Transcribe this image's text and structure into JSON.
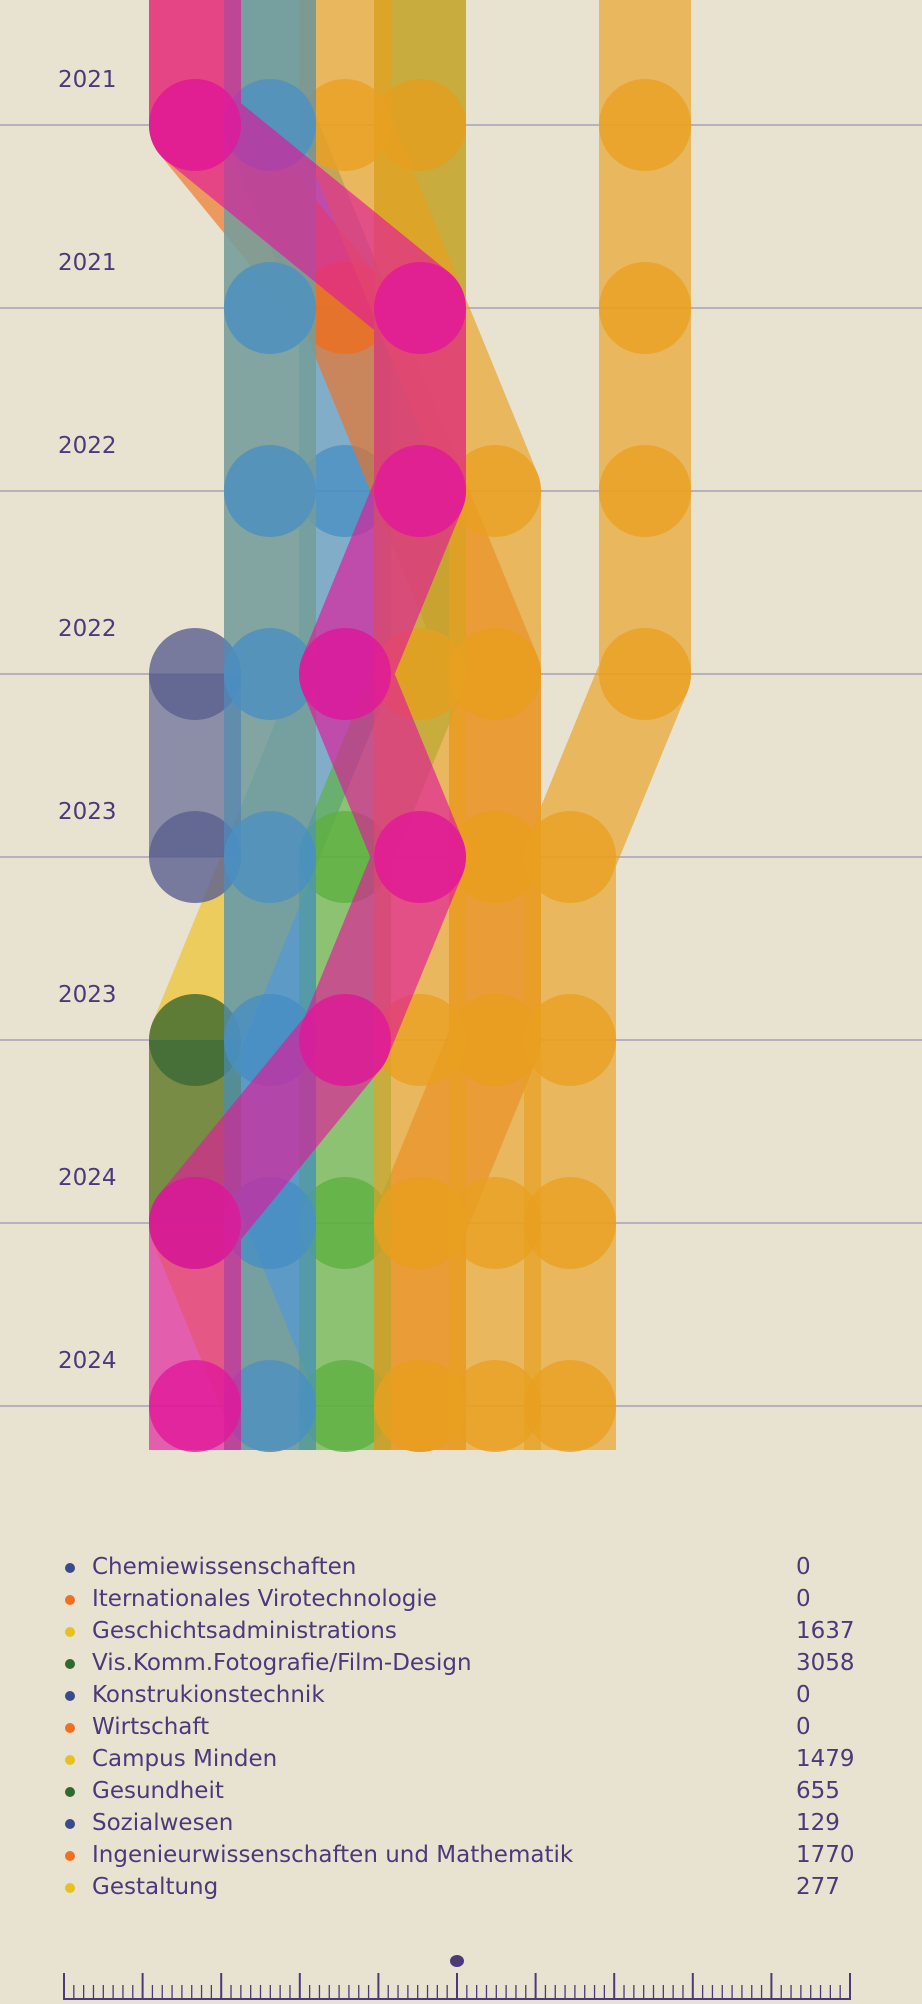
{
  "chart_data": {
    "type": "line",
    "title": "",
    "xlabel": "",
    "ylabel": "",
    "time_labels": [
      "2021",
      "2021",
      "2022",
      "2022",
      "2023",
      "2023",
      "2024",
      "2024"
    ],
    "grid": true,
    "legend_position": "bottom",
    "series": [
      {
        "name": "Chemiewissenschaften",
        "color": "#4a90c4",
        "rank": [
          2,
          3,
          3,
          3,
          2,
          2,
          2,
          2
        ]
      },
      {
        "name": "Iternationales Virotechnologie",
        "color": "#f07020",
        "rank": [
          1,
          3,
          4,
          5,
          5,
          5,
          4,
          4
        ]
      },
      {
        "name": "Geschichtsadministrations",
        "color": "#f0c020",
        "rank": [
          2,
          2,
          2,
          2,
          2,
          1,
          1,
          2
        ]
      },
      {
        "name": "Vis.Komm.Fotografie/Film-Design",
        "color": "#5cb040",
        "rank": [
          4,
          4,
          4,
          4,
          3,
          3,
          3,
          3
        ]
      },
      {
        "name": "Konstrukionstechnik",
        "color": "#5a6090",
        "rank": [
          null,
          null,
          null,
          1,
          1,
          null,
          null,
          null
        ]
      },
      {
        "name": "Wirtschaft",
        "color": "#e8a020",
        "rank": [
          4,
          4,
          5,
          5,
          5,
          5,
          5,
          5
        ]
      },
      {
        "name": "Campus Minden",
        "color": "#e8a020",
        "rank": [
          3,
          4,
          4,
          4,
          4,
          4,
          4,
          4
        ]
      },
      {
        "name": "Gesundheit",
        "color": "#3a6a38",
        "rank": [
          null,
          null,
          null,
          null,
          null,
          1,
          1,
          null
        ]
      },
      {
        "name": "Sozialwesen",
        "color": "#4a90c4",
        "rank": [
          2,
          2,
          2,
          2,
          2,
          2,
          2,
          2
        ]
      },
      {
        "name": "Ingenieurwissenschaften und Mathematik",
        "color": "#e8a020",
        "rank": [
          7,
          7,
          7,
          7,
          6,
          6,
          6,
          6
        ]
      },
      {
        "name": "Gestaltung",
        "color": "#e0189a",
        "rank": [
          1,
          4,
          4,
          3,
          4,
          3,
          1,
          1
        ]
      }
    ],
    "legend": [
      {
        "name": "Chemiewissenschaften",
        "value": "0",
        "color": "#3a4a8a"
      },
      {
        "name": "Iternationales Virotechnologie",
        "value": "0",
        "color": "#f07020"
      },
      {
        "name": "Geschichtsadministrations",
        "value": "1637",
        "color": "#e8c020"
      },
      {
        "name": "Vis.Komm.Fotografie/Film-Design",
        "value": "3058",
        "color": "#2e6a2e"
      },
      {
        "name": "Konstrukionstechnik",
        "value": "0",
        "color": "#3a4a8a"
      },
      {
        "name": "Wirtschaft",
        "value": "0",
        "color": "#f07020"
      },
      {
        "name": "Campus Minden",
        "value": "1479",
        "color": "#e8c020"
      },
      {
        "name": "Gesundheit",
        "value": "655",
        "color": "#2e6a2e"
      },
      {
        "name": "Sozialwesen",
        "value": "129",
        "color": "#3a4a8a"
      },
      {
        "name": "Ingenieurwissenschaften und Mathematik",
        "value": "1770",
        "color": "#f07020"
      },
      {
        "name": "Gestaltung",
        "value": "277",
        "color": "#e8c020"
      }
    ],
    "slider": {
      "position": 0.5
    }
  },
  "colors": {
    "background": "#e8e2d1",
    "text": "#4a3a7a",
    "gridline": "#a8a0b8"
  }
}
